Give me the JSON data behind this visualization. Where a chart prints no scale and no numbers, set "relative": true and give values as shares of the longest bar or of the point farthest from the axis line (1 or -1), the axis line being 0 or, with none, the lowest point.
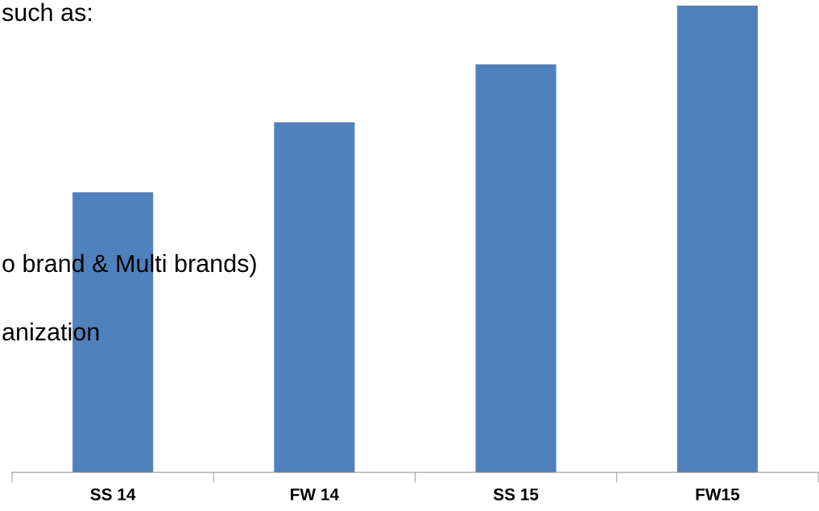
{
  "chart_data": {
    "type": "bar",
    "categories": [
      "SS 14",
      "FW 14",
      "SS 15",
      "FW15"
    ],
    "values": [
      0.6,
      0.75,
      0.874,
      1
    ],
    "color": "#4f81bd",
    "relative": true,
    "grid": false,
    "legend": false,
    "annotations": [
      "such as:",
      "o brand & Multi brands)",
      "anization"
    ]
  }
}
